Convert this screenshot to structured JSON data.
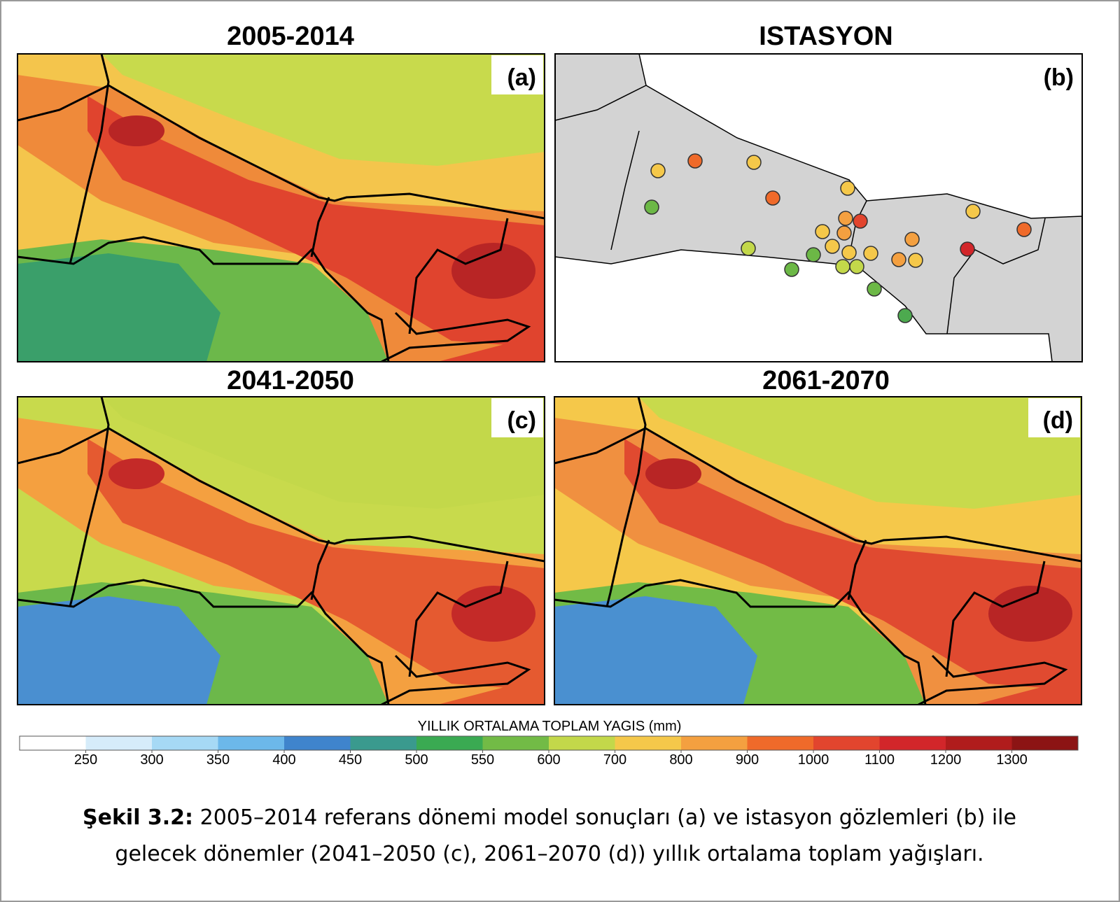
{
  "panels": [
    {
      "title": "2005-2014",
      "label": "(a)"
    },
    {
      "title": "ISTASYON",
      "label": "(b)"
    },
    {
      "title": "2041-2050",
      "label": "(c)"
    },
    {
      "title": "2061-2070",
      "label": "(d)"
    }
  ],
  "colorbar": {
    "label": "YILLIK ORTALAMA TOPLAM YAGIS (mm)",
    "ticks": [
      250,
      300,
      350,
      400,
      450,
      500,
      550,
      600,
      700,
      800,
      900,
      1000,
      1100,
      1200,
      1300
    ],
    "colors": [
      "#ffffff",
      "#d6ecfa",
      "#a6d9f5",
      "#6cb8ea",
      "#3f84cc",
      "#3a9a8e",
      "#3aaa52",
      "#72bb46",
      "#c3d84a",
      "#f5c84a",
      "#f4a040",
      "#ef6a2a",
      "#e2452e",
      "#d2262a",
      "#b01c1c",
      "#8c1414"
    ]
  },
  "caption": {
    "label": "Şekil 3.2:",
    "lines": [
      "2005–2014 referans dönemi model sonuçları (a) ve istasyon gözlemleri (b) ile",
      "gelecek dönemler (2041–2050 (c), 2061–2070 (d)) yıllık ortalama toplam yağışları."
    ]
  }
}
